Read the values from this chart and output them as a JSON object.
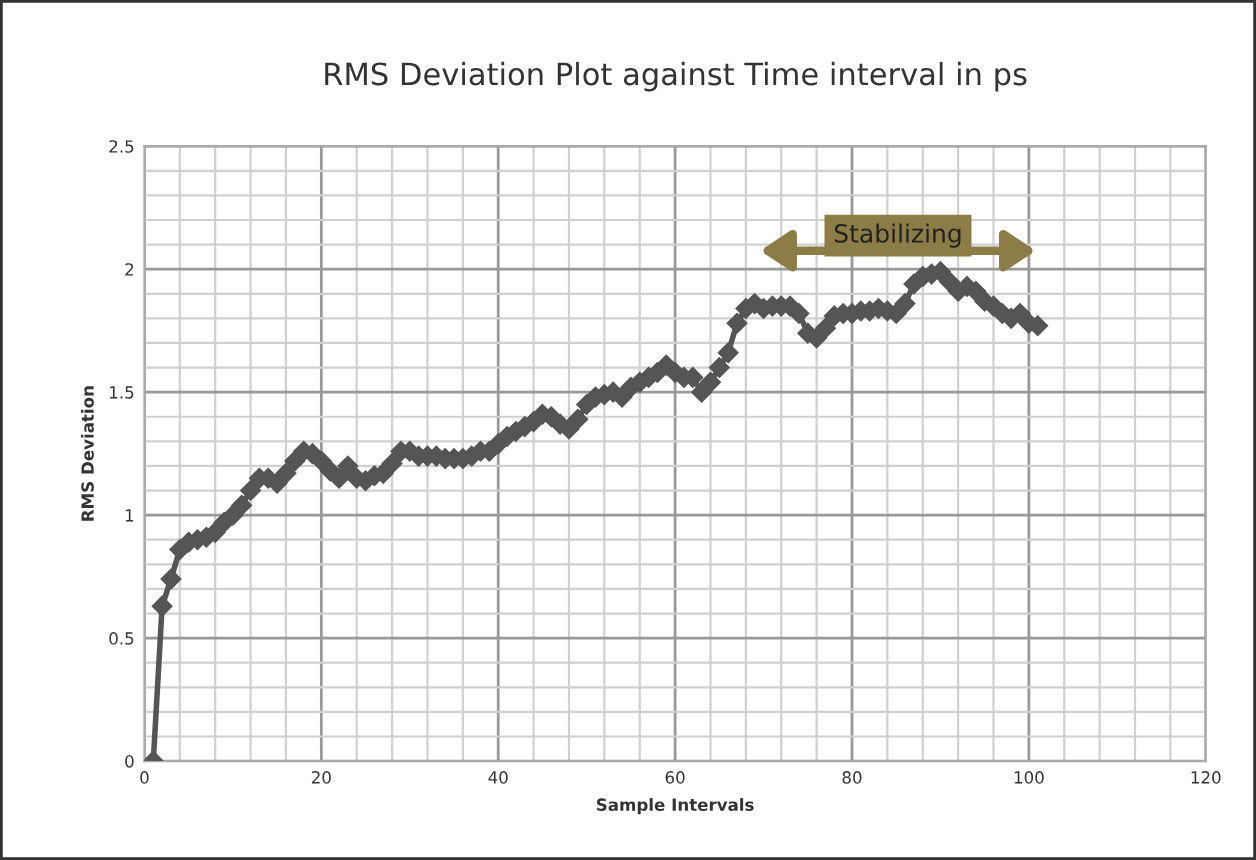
{
  "chart_data": {
    "type": "line",
    "title": "RMS Deviation Plot against Time interval in ps",
    "xlabel": "Sample Intervals",
    "ylabel": "RMS Deviation",
    "x": [
      1,
      2,
      3,
      4,
      5,
      6,
      7,
      8,
      9,
      10,
      11,
      12,
      13,
      14,
      15,
      16,
      17,
      18,
      19,
      20,
      21,
      22,
      23,
      24,
      25,
      26,
      27,
      28,
      29,
      30,
      31,
      32,
      33,
      34,
      35,
      36,
      37,
      38,
      39,
      40,
      41,
      42,
      43,
      44,
      45,
      46,
      47,
      48,
      49,
      50,
      51,
      52,
      53,
      54,
      55,
      56,
      57,
      58,
      59,
      60,
      61,
      62,
      63,
      64,
      65,
      66,
      67,
      68,
      69,
      70,
      71,
      72,
      73,
      74,
      75,
      76,
      77,
      78,
      79,
      80,
      81,
      82,
      83,
      84,
      85,
      86,
      87,
      88,
      89,
      90,
      91,
      92,
      93,
      94,
      95,
      96,
      97,
      98,
      99,
      100,
      101
    ],
    "series": [
      {
        "color": "#555555",
        "values": [
          0,
          0.63,
          0.74,
          0.86,
          0.89,
          0.9,
          0.91,
          0.93,
          0.97,
          1.0,
          1.04,
          1.1,
          1.15,
          1.15,
          1.13,
          1.17,
          1.22,
          1.26,
          1.25,
          1.22,
          1.18,
          1.15,
          1.2,
          1.15,
          1.14,
          1.16,
          1.17,
          1.21,
          1.26,
          1.26,
          1.24,
          1.24,
          1.24,
          1.23,
          1.23,
          1.23,
          1.24,
          1.26,
          1.26,
          1.29,
          1.32,
          1.34,
          1.36,
          1.38,
          1.41,
          1.4,
          1.37,
          1.35,
          1.39,
          1.45,
          1.48,
          1.49,
          1.5,
          1.48,
          1.52,
          1.54,
          1.56,
          1.58,
          1.61,
          1.58,
          1.56,
          1.56,
          1.5,
          1.54,
          1.6,
          1.66,
          1.78,
          1.84,
          1.86,
          1.84,
          1.85,
          1.85,
          1.85,
          1.82,
          1.74,
          1.72,
          1.76,
          1.81,
          1.82,
          1.82,
          1.83,
          1.83,
          1.84,
          1.83,
          1.82,
          1.86,
          1.94,
          1.97,
          1.98,
          1.99,
          1.95,
          1.91,
          1.93,
          1.91,
          1.87,
          1.85,
          1.82,
          1.8,
          1.82,
          1.78,
          1.77
        ]
      }
    ],
    "marker": "diamond",
    "line_style": "solid",
    "grid": true,
    "xlim": [
      0,
      120
    ],
    "xticks": [
      0,
      {
        "value": 4,
        "label": null
      },
      {
        "value": 8,
        "label": null
      },
      {
        "value": 12,
        "label": null
      },
      {
        "value": 16,
        "label": null
      },
      20,
      {
        "value": 24,
        "label": null
      },
      {
        "value": 28,
        "label": null
      },
      {
        "value": 32,
        "label": null
      },
      {
        "value": 36,
        "label": null
      },
      40,
      {
        "value": 44,
        "label": null
      },
      {
        "value": 48,
        "label": null
      },
      {
        "value": 52,
        "label": null
      },
      {
        "value": 56,
        "label": null
      },
      60,
      {
        "value": 64,
        "label": null
      },
      {
        "value": 68,
        "label": null
      },
      {
        "value": 72,
        "label": null
      },
      {
        "value": 76,
        "label": null
      },
      80,
      {
        "value": 84,
        "label": null
      },
      {
        "value": 88,
        "label": null
      },
      {
        "value": 92,
        "label": null
      },
      {
        "value": 96,
        "label": null
      },
      100,
      {
        "value": 104,
        "label": null
      },
      {
        "value": 108,
        "label": null
      },
      {
        "value": 112,
        "label": null
      },
      {
        "value": 116,
        "label": null
      },
      120
    ],
    "ylim": [
      0,
      2.5
    ],
    "yticks": [
      0,
      {
        "value": 0.1,
        "label": null
      },
      {
        "value": 0.2,
        "label": null
      },
      {
        "value": 0.3,
        "label": null
      },
      {
        "value": 0.4,
        "label": null
      },
      0.5,
      {
        "value": 0.6,
        "label": null
      },
      {
        "value": 0.7,
        "label": null
      },
      {
        "value": 0.8,
        "label": null
      },
      {
        "value": 0.9,
        "label": null
      },
      1,
      {
        "value": 1.1,
        "label": null
      },
      {
        "value": 1.2,
        "label": null
      },
      {
        "value": 1.3,
        "label": null
      },
      {
        "value": 1.4,
        "label": null
      },
      1.5,
      {
        "value": 1.6,
        "label": null
      },
      {
        "value": 1.7,
        "label": null
      },
      {
        "value": 1.8,
        "label": null
      },
      {
        "value": 1.9,
        "label": null
      },
      2,
      {
        "value": 2.1,
        "label": null
      },
      {
        "value": 2.2,
        "label": null
      },
      {
        "value": 2.3,
        "label": null
      },
      {
        "value": 2.4,
        "label": null
      },
      2.5
    ],
    "annotations": [
      "Stabilizing"
    ]
  }
}
